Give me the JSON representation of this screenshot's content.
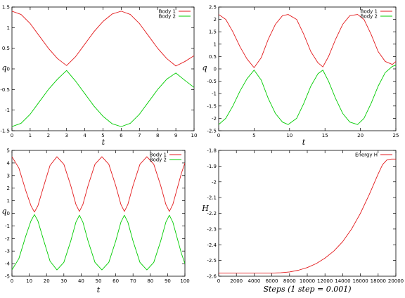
{
  "chart_data": [
    {
      "type": "line",
      "xlabel": "t",
      "ylabel": "q",
      "xlim": [
        0,
        10
      ],
      "ylim": [
        -1.5,
        1.5
      ],
      "xticks": [
        0,
        1,
        2,
        3,
        4,
        5,
        6,
        7,
        8,
        9,
        10
      ],
      "yticks": [
        -1.5,
        -1,
        -0.5,
        0,
        0.5,
        1,
        1.5
      ],
      "xtick_labels": [
        "0",
        "1",
        "2",
        "3",
        "4",
        "5",
        "6",
        "7",
        "8",
        "9",
        "10"
      ],
      "ytick_labels": [
        "-1.5",
        "-1",
        "-0.5",
        "0",
        "0.5",
        "1",
        "1.5"
      ],
      "legend": "top-right",
      "grid": false,
      "series": [
        {
          "name": "Body 1",
          "color": "#e31a1c",
          "x": [
            0,
            0.5,
            1,
            1.5,
            2,
            2.5,
            3,
            3.5,
            4,
            4.5,
            5,
            5.5,
            6,
            6.5,
            7,
            7.5,
            8,
            8.5,
            9,
            9.5,
            10
          ],
          "y": [
            1.4,
            1.32,
            1.1,
            0.8,
            0.5,
            0.25,
            0.08,
            0.3,
            0.6,
            0.9,
            1.15,
            1.33,
            1.4,
            1.32,
            1.1,
            0.8,
            0.5,
            0.25,
            0.07,
            0.18,
            0.32
          ]
        },
        {
          "name": "Body 2",
          "color": "#00cc00",
          "x": [
            0,
            0.5,
            1,
            1.5,
            2,
            2.5,
            3,
            3.5,
            4,
            4.5,
            5,
            5.5,
            6,
            6.5,
            7,
            7.5,
            8,
            8.5,
            9,
            9.5,
            10
          ],
          "y": [
            -1.4,
            -1.32,
            -1.1,
            -0.8,
            -0.5,
            -0.25,
            -0.04,
            -0.3,
            -0.6,
            -0.9,
            -1.15,
            -1.33,
            -1.4,
            -1.32,
            -1.1,
            -0.8,
            -0.5,
            -0.25,
            -0.1,
            -0.28,
            -0.45
          ]
        }
      ]
    },
    {
      "type": "line",
      "xlabel": "t",
      "ylabel": "q",
      "xlim": [
        0,
        25
      ],
      "ylim": [
        -2.5,
        2.5
      ],
      "xticks": [
        0,
        5,
        10,
        15,
        20,
        25
      ],
      "yticks": [
        -2.5,
        -2,
        -1.5,
        -1,
        -0.5,
        0,
        0.5,
        1,
        1.5,
        2,
        2.5
      ],
      "xtick_labels": [
        "0",
        "5",
        "10",
        "15",
        "20",
        "25"
      ],
      "ytick_labels": [
        "-2.5",
        "-2",
        "-1.5",
        "-1",
        "-0.5",
        "0",
        "0.5",
        "1",
        "1.5",
        "2",
        "2.5"
      ],
      "legend": "top-right",
      "grid": false,
      "series": [
        {
          "name": "Body 1",
          "color": "#e31a1c",
          "x": [
            0,
            1,
            2,
            3,
            4,
            5,
            6,
            7,
            8,
            9,
            9.8,
            11,
            12,
            13,
            14,
            14.7,
            15.5,
            16.5,
            17.5,
            18.5,
            19.6,
            20.5,
            21.5,
            22.5,
            23.5,
            24.5,
            25
          ],
          "y": [
            2.2,
            2.0,
            1.5,
            0.9,
            0.4,
            0.05,
            0.45,
            1.2,
            1.8,
            2.15,
            2.2,
            2.0,
            1.4,
            0.7,
            0.25,
            0.08,
            0.5,
            1.2,
            1.8,
            2.15,
            2.2,
            2.0,
            1.4,
            0.7,
            0.3,
            0.18,
            0.3
          ]
        },
        {
          "name": "Body 2",
          "color": "#00cc00",
          "x": [
            0,
            1,
            2,
            3,
            4,
            5,
            6,
            7,
            8,
            9,
            9.8,
            11,
            12,
            13,
            14,
            14.7,
            15.5,
            16.5,
            17.5,
            18.5,
            19.6,
            20.5,
            21.5,
            22.5,
            23.5,
            24.5,
            25
          ],
          "y": [
            -2.25,
            -2.0,
            -1.5,
            -0.9,
            -0.4,
            -0.05,
            -0.45,
            -1.2,
            -1.8,
            -2.15,
            -2.25,
            -2.0,
            -1.4,
            -0.7,
            -0.2,
            -0.05,
            -0.5,
            -1.2,
            -1.8,
            -2.15,
            -2.25,
            -2.0,
            -1.4,
            -0.7,
            -0.15,
            0.1,
            0.15
          ]
        }
      ]
    },
    {
      "type": "line",
      "xlabel": "t",
      "ylabel": "q",
      "xlim": [
        0,
        100
      ],
      "ylim": [
        -5,
        5
      ],
      "xticks": [
        0,
        10,
        20,
        30,
        40,
        50,
        60,
        70,
        80,
        90,
        100
      ],
      "yticks": [
        -5,
        -4,
        -3,
        -2,
        -1,
        0,
        1,
        2,
        3,
        4,
        5
      ],
      "xtick_labels": [
        "0",
        "10",
        "20",
        "30",
        "40",
        "50",
        "60",
        "70",
        "80",
        "90",
        "100"
      ],
      "ytick_labels": [
        "-5",
        "-4",
        "-3",
        "-2",
        "-1",
        "0",
        "1",
        "2",
        "3",
        "4",
        "5"
      ],
      "legend": "top-right",
      "grid": false,
      "series": [
        {
          "name": "Body 1",
          "color": "#e31a1c",
          "x": [
            0,
            4,
            8,
            11,
            13,
            15,
            18,
            22,
            26,
            30,
            34,
            37,
            39,
            41,
            44,
            48,
            52,
            56,
            60,
            63,
            65,
            67,
            70,
            74,
            78,
            82,
            86,
            89,
            91,
            93,
            96,
            98,
            100
          ],
          "y": [
            4.5,
            3.6,
            1.8,
            0.6,
            0.1,
            0.6,
            2.0,
            3.8,
            4.5,
            3.9,
            2.2,
            0.7,
            0.15,
            0.7,
            2.2,
            3.9,
            4.5,
            3.9,
            2.2,
            0.7,
            0.15,
            0.7,
            2.2,
            3.9,
            4.5,
            3.9,
            2.2,
            0.7,
            0.15,
            0.7,
            2.2,
            3.2,
            4.0
          ]
        },
        {
          "name": "Body 2",
          "color": "#00cc00",
          "x": [
            0,
            4,
            8,
            11,
            13,
            15,
            18,
            22,
            26,
            30,
            34,
            37,
            39,
            41,
            44,
            48,
            52,
            56,
            60,
            63,
            65,
            67,
            70,
            74,
            78,
            82,
            86,
            89,
            91,
            93,
            96,
            98,
            100
          ],
          "y": [
            -4.5,
            -3.6,
            -1.8,
            -0.6,
            -0.1,
            -0.6,
            -2.0,
            -3.8,
            -4.5,
            -3.9,
            -2.2,
            -0.7,
            -0.15,
            -0.7,
            -2.2,
            -3.9,
            -4.5,
            -3.9,
            -2.2,
            -0.7,
            -0.15,
            -0.7,
            -2.2,
            -3.9,
            -4.5,
            -3.9,
            -2.2,
            -0.7,
            -0.15,
            -0.7,
            -2.2,
            -3.2,
            -4.0
          ]
        }
      ]
    },
    {
      "type": "line",
      "xlabel": "Steps (1 step = 0.001)",
      "ylabel": "H",
      "xlim": [
        0,
        20000
      ],
      "ylim": [
        -2.6,
        -1.8
      ],
      "xticks": [
        0,
        2000,
        4000,
        6000,
        8000,
        10000,
        12000,
        14000,
        16000,
        18000,
        20000
      ],
      "yticks": [
        -2.6,
        -2.5,
        -2.4,
        -2.3,
        -2.2,
        -2.1,
        -2.0,
        -1.9,
        -1.8
      ],
      "xtick_labels": [
        "0",
        "2000",
        "4000",
        "6000",
        "8000",
        "10000",
        "12000",
        "14000",
        "16000",
        "18000",
        "20000"
      ],
      "ytick_labels": [
        "-2.6",
        "-2.5",
        "-2.4",
        "-2.3",
        "-2.2",
        "-2.1",
        "-2",
        "-1.9",
        "-1.8"
      ],
      "legend": "top-right",
      "grid": false,
      "series": [
        {
          "name": "Energy H",
          "color": "#e31a1c",
          "x": [
            0,
            2000,
            4000,
            6000,
            7000,
            8000,
            9000,
            10000,
            11000,
            12000,
            13000,
            14000,
            15000,
            16000,
            17000,
            18000,
            18500,
            19000,
            19500,
            20000
          ],
          "y": [
            -2.58,
            -2.58,
            -2.58,
            -2.58,
            -2.578,
            -2.573,
            -2.562,
            -2.545,
            -2.52,
            -2.485,
            -2.44,
            -2.38,
            -2.3,
            -2.2,
            -2.08,
            -1.95,
            -1.89,
            -1.86,
            -1.855,
            -1.855
          ]
        }
      ]
    }
  ]
}
